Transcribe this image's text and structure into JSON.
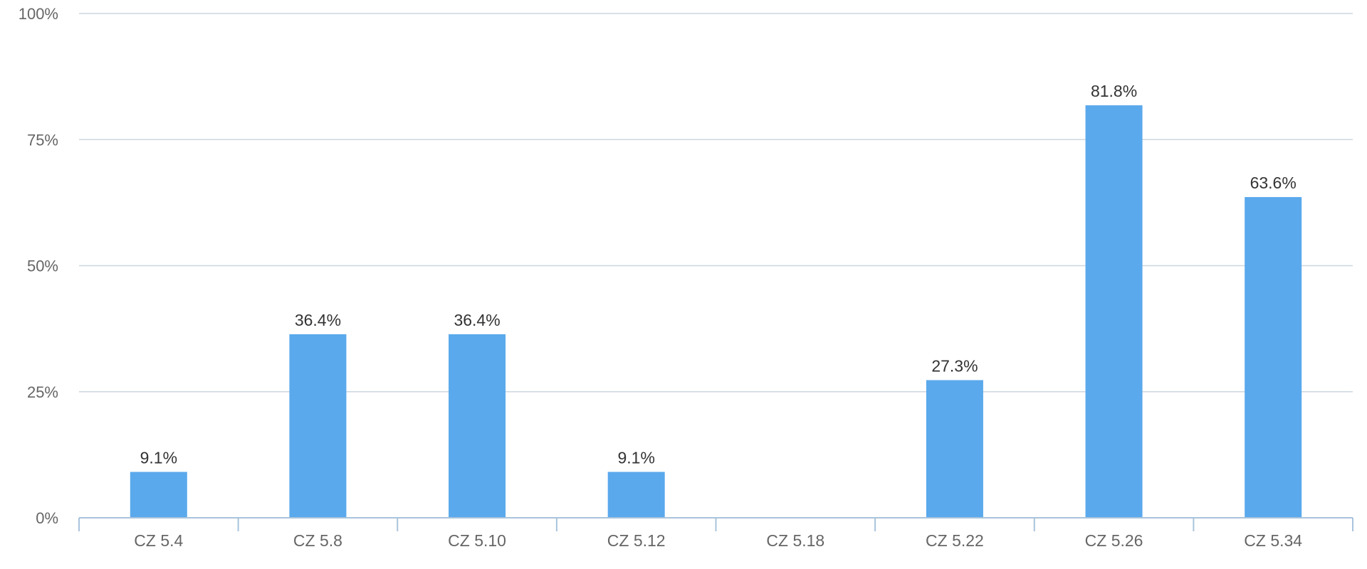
{
  "chart_data": {
    "type": "bar",
    "categories": [
      "CZ 5.4",
      "CZ 5.8",
      "CZ 5.10",
      "CZ 5.12",
      "CZ 5.18",
      "CZ 5.22",
      "CZ 5.26",
      "CZ 5.34"
    ],
    "values": [
      9.1,
      36.4,
      36.4,
      9.1,
      0,
      27.3,
      81.8,
      63.6
    ],
    "data_labels": [
      "9.1%",
      "36.4%",
      "36.4%",
      "9.1%",
      "",
      "27.3%",
      "81.8%",
      "63.6%"
    ],
    "title": "",
    "xlabel": "",
    "ylabel": "",
    "ylim": [
      0,
      100
    ],
    "yticks": [
      0,
      25,
      50,
      75,
      100
    ],
    "ytick_labels": [
      "0%",
      "25%",
      "50%",
      "75%",
      "100%"
    ],
    "grid": true,
    "legend": "none",
    "colors": {
      "bar": "#5aa9ec",
      "grid": "#ccd6e0",
      "axis": "#a8c4dc",
      "tick_text": "#666666",
      "label_text": "#333333"
    }
  }
}
